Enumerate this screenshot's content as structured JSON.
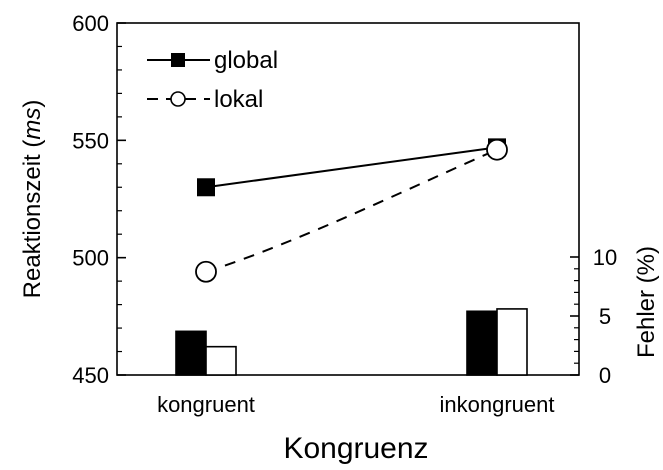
{
  "chart_data": {
    "type": "line",
    "title": "",
    "xlabel": "Kongruenz",
    "ylabel": "Reaktionszeit (ms)",
    "ylabel_parts": [
      "Reaktionszeit (",
      "ms",
      ")"
    ],
    "y2label": "Fehler (%)",
    "categories": [
      "kongruent",
      "inkongruent"
    ],
    "ylim": [
      450,
      600
    ],
    "yticks": [
      450,
      500,
      550,
      600
    ],
    "y2lim": [
      0,
      10
    ],
    "y2ticks": [
      0,
      5,
      10
    ],
    "legend_position": "top-left",
    "grid": false,
    "series": [
      {
        "name": "global",
        "axis": "left",
        "kind": "line",
        "style": "solid",
        "marker": "filled-square",
        "values": [
          530,
          547
        ]
      },
      {
        "name": "lokal",
        "axis": "left",
        "kind": "line",
        "style": "dashed",
        "marker": "open-circle",
        "values": [
          494,
          546
        ]
      },
      {
        "name": "global",
        "axis": "right",
        "kind": "bar",
        "fill": "#000000",
        "values": [
          3.7,
          5.4
        ]
      },
      {
        "name": "lokal",
        "axis": "right",
        "kind": "bar",
        "fill": "#ffffff",
        "values": [
          2.4,
          5.6
        ]
      }
    ]
  }
}
